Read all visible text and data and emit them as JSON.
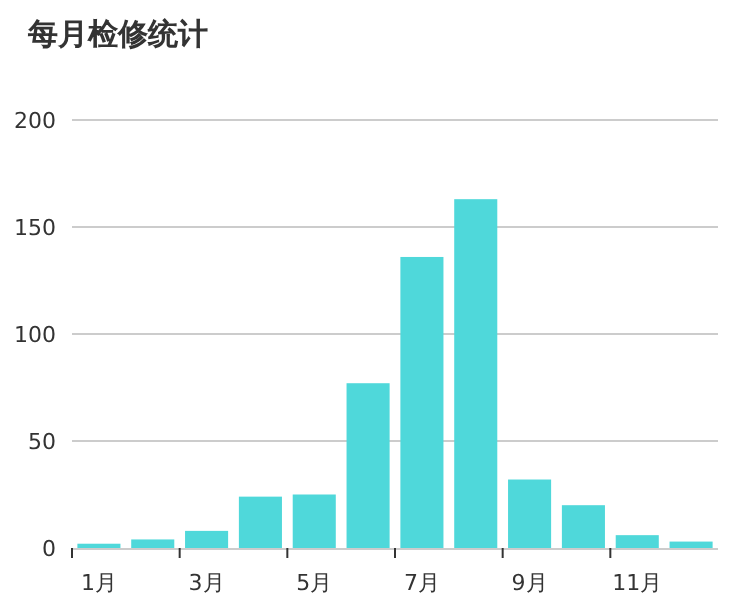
{
  "chart_data": {
    "type": "bar",
    "title": "每月检修统计",
    "categories": [
      "1月",
      null,
      "3月",
      null,
      "5月",
      null,
      "7月",
      null,
      "9月",
      null,
      "11月",
      null
    ],
    "values": [
      2,
      4,
      8,
      24,
      25,
      77,
      136,
      163,
      32,
      20,
      6,
      3
    ],
    "color": "#4fd8da",
    "ylim": [
      0,
      200
    ],
    "yticks": [
      0,
      50,
      100,
      150,
      200
    ],
    "grid": "y"
  }
}
